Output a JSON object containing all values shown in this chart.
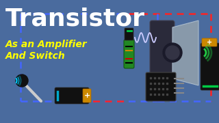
{
  "bg_color": "#4a6b9e",
  "title": "Transistor",
  "title_color": "#ffffff",
  "subtitle_line1": "As an Amplifier",
  "subtitle_line2": "And Switch",
  "subtitle_color": "#ffff00",
  "blue_wire": "#4466ff",
  "red_wire": "#ff2222",
  "battery1_body": "#111111",
  "battery1_cap": "#cc8800",
  "battery2_body": "#111111",
  "battery2_cap": "#cc8800",
  "resistor_color": "#228822",
  "transistor_color": "#111111",
  "speaker_cone_color": "#888899",
  "speaker_body_color": "#333344",
  "mic_ball_color": "#111111",
  "mic_stick_color": "#cccccc",
  "sound_wave_color": "#00ccff",
  "green_wave_color": "#22cc44",
  "signal_wave_color": "#ffffff"
}
